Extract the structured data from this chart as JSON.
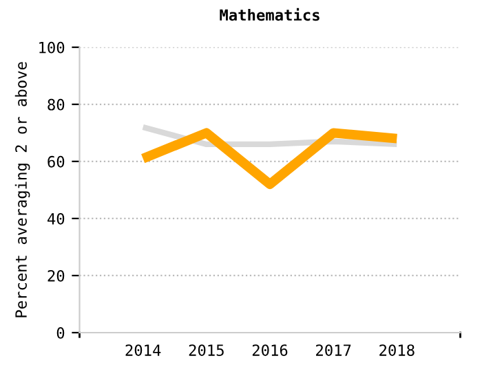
{
  "chart_data": {
    "type": "line",
    "title": "Mathematics",
    "ylabel": "Percent averaging 2 or above",
    "categories": [
      "2014",
      "2015",
      "2016",
      "2017",
      "2018"
    ],
    "series": [
      {
        "color": "#d9d9d9",
        "values": [
          72,
          66,
          66,
          67,
          66
        ]
      },
      {
        "color": "#ffa500",
        "values": [
          61,
          70,
          52,
          70,
          68
        ]
      }
    ],
    "ylim": [
      0,
      100
    ],
    "yticks": [
      0,
      20,
      40,
      60,
      80,
      100
    ],
    "grid": "y",
    "marker": "none",
    "line_style": "solid"
  }
}
